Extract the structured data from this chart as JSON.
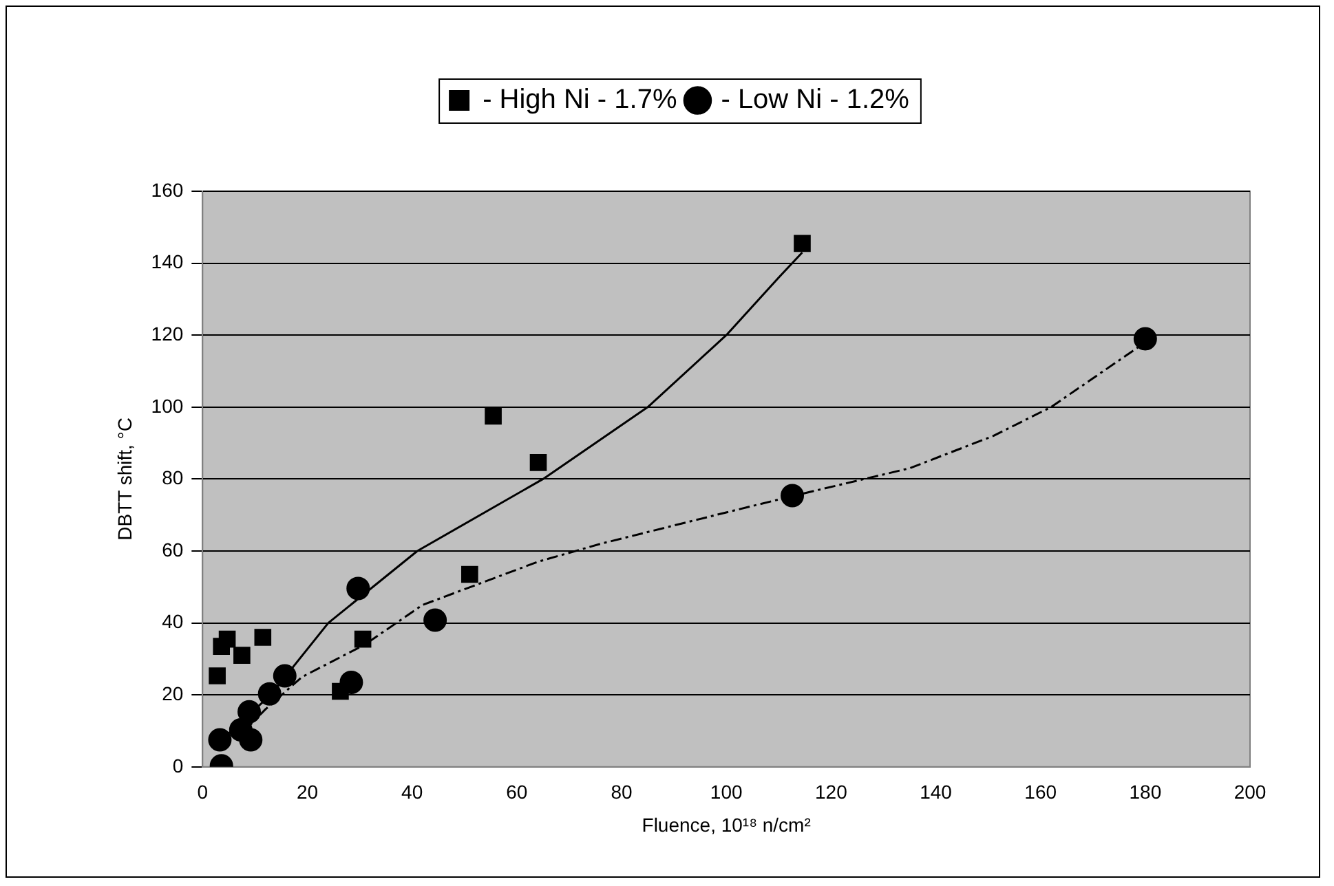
{
  "chart_data": {
    "type": "scatter",
    "xlabel": "Fluence, 10¹⁸ n/cm²",
    "ylabel": "DBTT shift, °C",
    "xlim": [
      0,
      200
    ],
    "xticks": [
      0,
      20,
      40,
      60,
      80,
      100,
      120,
      140,
      160,
      180,
      200
    ],
    "ylim": [
      0,
      160
    ],
    "yticks": [
      0,
      20,
      40,
      60,
      80,
      100,
      120,
      140,
      160
    ],
    "grid": "y",
    "legend": "top",
    "series": [
      {
        "name": "- High Ni - 1.7%",
        "color": "#000000",
        "marker": "square",
        "x": [
          2.8,
          3.6,
          4.7,
          7.5,
          11.5,
          26.3,
          30.6,
          51,
          55.5,
          64.1,
          114.5
        ],
        "values": [
          25.3,
          33.5,
          35.5,
          31,
          36,
          21,
          35.5,
          53.5,
          97.5,
          84.6,
          145.5
        ]
      },
      {
        "name": "- Low Ni - 1.2%",
        "color": "#000000",
        "marker": "circle",
        "x": [
          3.6,
          3.3,
          7.3,
          9.2,
          8.9,
          12.8,
          15.7,
          28.4,
          29.7,
          44.4,
          112.6,
          180
        ],
        "values": [
          0.3,
          7.5,
          10.3,
          7.5,
          15.3,
          20.3,
          25.3,
          23.5,
          49.6,
          40.8,
          75.4,
          119
        ]
      },
      {
        "type": "line",
        "color": "#000000",
        "marker": "none",
        "line_style": "solid",
        "x": [
          4,
          13,
          24,
          41,
          65,
          85,
          100,
          110,
          114.5
        ],
        "values": [
          8,
          20,
          40,
          60,
          80,
          100,
          120,
          136,
          143
        ]
      },
      {
        "type": "line",
        "color": "#000000",
        "marker": "none",
        "line_style": "dashed",
        "x": [
          8,
          12,
          19,
          31,
          42,
          64,
          76,
          98,
          113,
          135,
          151,
          162,
          180
        ],
        "values": [
          10,
          16,
          25,
          34,
          45,
          57,
          62,
          70,
          75.4,
          83,
          92,
          100,
          118
        ]
      }
    ]
  }
}
